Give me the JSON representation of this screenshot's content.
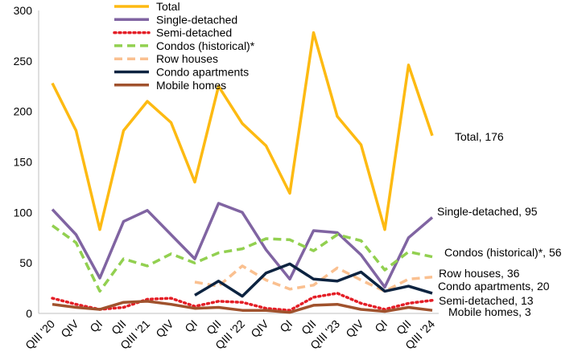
{
  "chart_data": {
    "type": "line",
    "title": "",
    "xlabel": "",
    "ylabel": "",
    "ylim": [
      0,
      300
    ],
    "yticks": [
      0,
      50,
      100,
      150,
      200,
      250,
      300
    ],
    "grid": false,
    "legend_position": "top-center",
    "categories": [
      "QIII '20",
      "QIV",
      "QI",
      "QII",
      "QIII '21",
      "QIV",
      "QI",
      "QII",
      "QIII '22",
      "QIV",
      "QI",
      "QII",
      "QIII '23",
      "QIV",
      "QI",
      "QII",
      "QIII '24"
    ],
    "series": [
      {
        "name": "Total",
        "color": "#FDBA12",
        "dash": "solid",
        "values": [
          228,
          181,
          83,
          181,
          210,
          189,
          130,
          225,
          188,
          166,
          119,
          278,
          195,
          167,
          83,
          246,
          176
        ],
        "end_label": "Total, 176"
      },
      {
        "name": "Single-detached",
        "color": "#8064A2",
        "dash": "solid",
        "values": [
          103,
          78,
          35,
          91,
          102,
          78,
          54,
          109,
          100,
          63,
          34,
          82,
          80,
          58,
          26,
          75,
          95
        ],
        "end_label": "Single-detached, 95"
      },
      {
        "name": "Semi-detached",
        "color": "#E41E26",
        "dash": "dotted",
        "values": [
          15,
          9,
          4,
          6,
          14,
          15,
          7,
          12,
          11,
          5,
          3,
          16,
          20,
          10,
          4,
          10,
          13
        ],
        "end_label": "Semi-detached, 13"
      },
      {
        "name": "Condos (historical)*",
        "color": "#92D050",
        "dash": "dashed",
        "values": [
          87,
          70,
          22,
          54,
          47,
          59,
          50,
          60,
          64,
          74,
          73,
          62,
          78,
          72,
          43,
          61,
          56
        ],
        "end_label": "Condos (historical)*, 56"
      },
      {
        "name": "Row houses",
        "color": "#FAC090",
        "dash": "dashed",
        "values": [
          null,
          null,
          null,
          null,
          null,
          null,
          31,
          27,
          47,
          33,
          24,
          28,
          45,
          33,
          22,
          34,
          36
        ],
        "end_label": "Row houses, 36"
      },
      {
        "name": "Condo apartments",
        "color": "#0C2340",
        "dash": "solid",
        "values": [
          null,
          null,
          null,
          null,
          null,
          null,
          18,
          32,
          17,
          40,
          49,
          34,
          32,
          41,
          22,
          27,
          20
        ],
        "end_label": "Condo apartments, 20"
      },
      {
        "name": "Mobile homes",
        "color": "#A0522D",
        "dash": "solid",
        "values": [
          9,
          6,
          4,
          11,
          12,
          9,
          5,
          6,
          3,
          3,
          1,
          8,
          9,
          4,
          2,
          6,
          3
        ],
        "end_label": "Mobile homes, 3"
      }
    ]
  }
}
